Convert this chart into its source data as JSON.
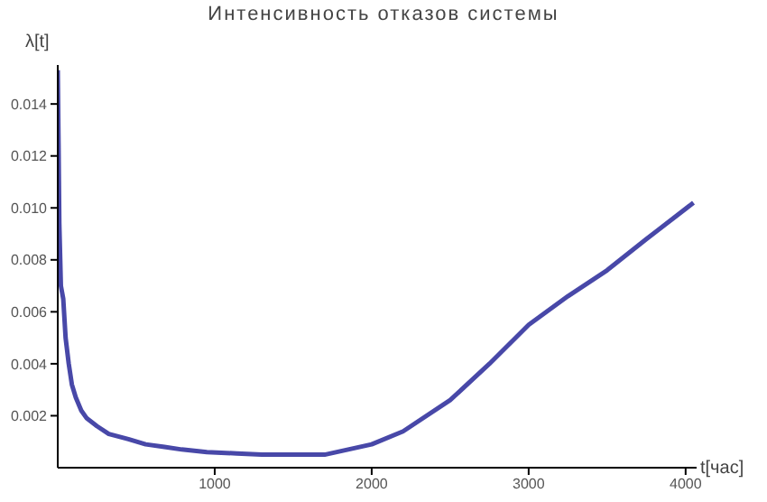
{
  "chart_data": {
    "type": "line",
    "title": "Интенсивность отказов системы",
    "xlabel": "t[час]",
    "ylabel": "λ[t]",
    "x": [
      0,
      5,
      10,
      20,
      35,
      50,
      70,
      90,
      115,
      150,
      185,
      250,
      325,
      450,
      560,
      680,
      790,
      950,
      1140,
      1300,
      1500,
      1700,
      1850,
      2000,
      2200,
      2500,
      2750,
      3000,
      3250,
      3500,
      3750,
      4050
    ],
    "series": [
      {
        "color": "#4848a8",
        "values": [
          0.0153,
          0.0125,
          0.0094,
          0.007,
          0.0065,
          0.005,
          0.004,
          0.0032,
          0.0027,
          0.0022,
          0.0019,
          0.0016,
          0.0013,
          0.0011,
          0.0009,
          0.0008,
          0.0007,
          0.0006,
          0.00055,
          0.0005,
          0.0005,
          0.0005,
          0.0007,
          0.0009,
          0.0014,
          0.0026,
          0.004,
          0.0055,
          0.0066,
          0.0076,
          0.0088,
          0.0102
        ]
      }
    ],
    "xlim": [
      0,
      4070
    ],
    "ylim": [
      0,
      0.0155
    ],
    "xticks": [
      1000,
      2000,
      3000,
      4000
    ],
    "yticks": [
      0.002,
      0.004,
      0.006,
      0.008,
      {
        "value": 0.01,
        "label": "0.010"
      },
      0.012,
      0.014
    ],
    "grid": false,
    "legend": false,
    "marker": "none",
    "line_style": "solid"
  }
}
